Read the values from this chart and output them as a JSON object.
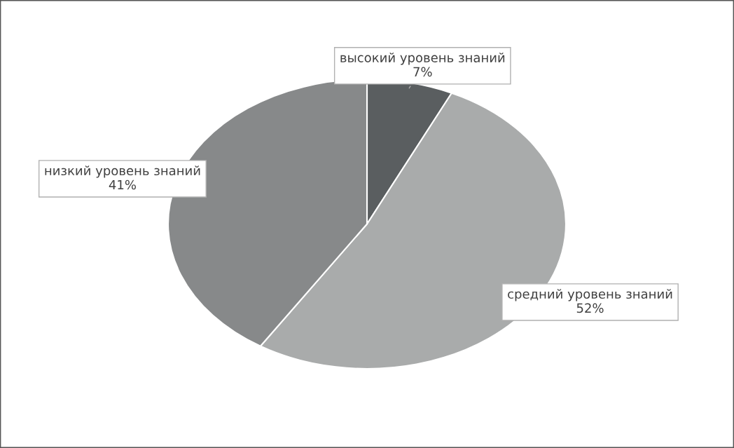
{
  "chart_data": {
    "type": "pie",
    "categories": [
      "высокий уровень знаний",
      "средний уровень знаний",
      "низкий уровень знаний"
    ],
    "values": [
      7,
      52,
      41
    ],
    "colors": [
      "#5a5e60",
      "#a9abab",
      "#87898a"
    ],
    "value_labels": [
      "7%",
      "52%",
      "41%"
    ],
    "legend": false
  }
}
